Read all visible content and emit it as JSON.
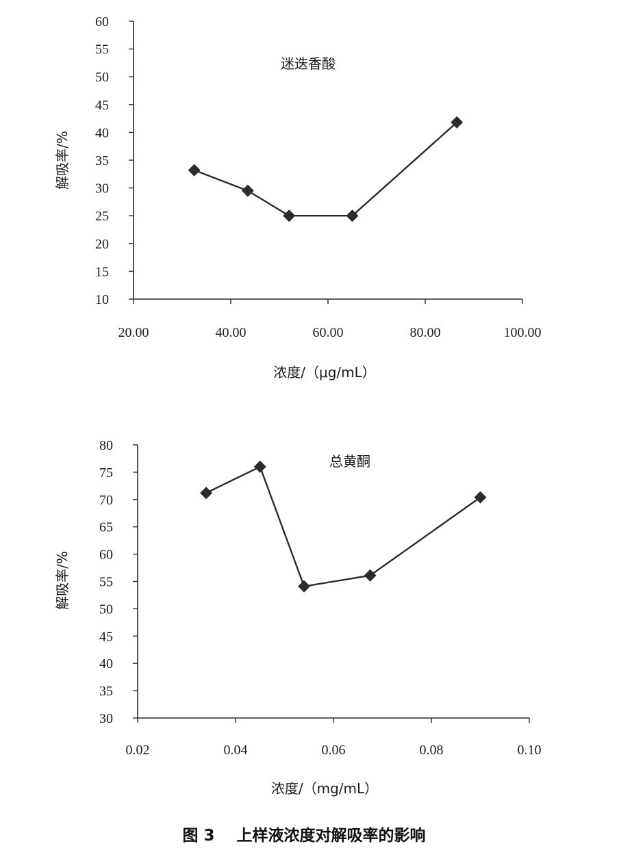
{
  "figure_caption": "图 3    上样液浓度对解吸率的影响",
  "chart_data": [
    {
      "type": "line",
      "title": "迷迭香酸",
      "xlabel": "浓度/（μg/mL）",
      "ylabel": "解吸率/%",
      "xlim": [
        20,
        100
      ],
      "ylim": [
        10,
        60
      ],
      "x_ticks": [
        20,
        40,
        60,
        80,
        100
      ],
      "x_tick_labels": [
        "20.00",
        "40.00",
        "60.00",
        "80.00",
        "100.00"
      ],
      "y_ticks": [
        10,
        15,
        20,
        25,
        30,
        35,
        40,
        45,
        50,
        55,
        60
      ],
      "y_tick_labels": [
        "10",
        "15",
        "20",
        "25",
        "30",
        "35",
        "40",
        "45",
        "50",
        "55",
        "60"
      ],
      "marker": "diamond",
      "grid": false,
      "color": "#2b2b2b",
      "series": [
        {
          "x": [
            32.5,
            43.5,
            52.0,
            65.0,
            86.5
          ],
          "y": [
            33.2,
            29.5,
            25.0,
            25.0,
            41.8
          ]
        }
      ]
    },
    {
      "type": "line",
      "title": "总黄酮",
      "xlabel": "浓度/（mg/mL）",
      "ylabel": "解吸率/%",
      "xlim": [
        0.02,
        0.1
      ],
      "ylim": [
        30,
        80
      ],
      "x_ticks": [
        0.02,
        0.04,
        0.06,
        0.08,
        0.1
      ],
      "x_tick_labels": [
        "0.02",
        "0.04",
        "0.06",
        "0.08",
        "0.10"
      ],
      "y_ticks": [
        30,
        35,
        40,
        45,
        50,
        55,
        60,
        65,
        70,
        75,
        80
      ],
      "y_tick_labels": [
        "30",
        "35",
        "40",
        "45",
        "50",
        "55",
        "60",
        "65",
        "70",
        "75",
        "80"
      ],
      "marker": "diamond",
      "grid": false,
      "color": "#2b2b2b",
      "series": [
        {
          "x": [
            0.034,
            0.045,
            0.054,
            0.0675,
            0.09
          ],
          "y": [
            71.2,
            76.0,
            54.1,
            56.1,
            70.4
          ]
        }
      ]
    }
  ]
}
